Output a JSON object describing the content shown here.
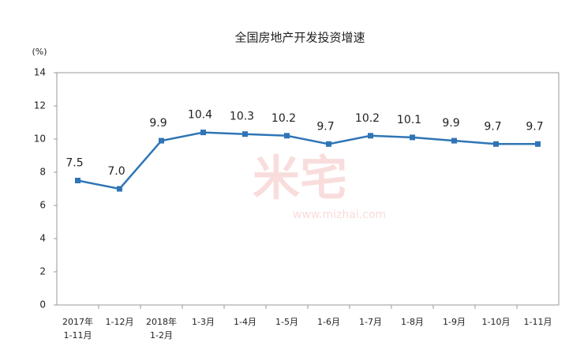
{
  "chart_data": {
    "type": "line",
    "title": "全国房地产开发投资增速",
    "y_unit": "(%)",
    "categories": [
      "2017年\n1-11月",
      "1-12月",
      "2018年\n1-2月",
      "1-3月",
      "1-4月",
      "1-5月",
      "1-6月",
      "1-7月",
      "1-8月",
      "1-9月",
      "1-10月",
      "1-11月"
    ],
    "series": [
      {
        "name": "全国房地产开发投资增速",
        "color": "#2f75b5",
        "values": [
          7.5,
          7.0,
          9.9,
          10.4,
          10.3,
          10.2,
          9.7,
          10.2,
          10.1,
          9.9,
          9.7,
          9.7
        ],
        "value_labels": [
          "7.5",
          "7.0",
          "9.9",
          "10.4",
          "10.3",
          "10.2",
          "9.7",
          "10.2",
          "10.1",
          "9.9",
          "9.7",
          "9.7"
        ]
      }
    ],
    "ylim": [
      0,
      14
    ],
    "yticks": [
      0,
      2,
      4,
      6,
      8,
      10,
      12,
      14
    ],
    "grid": false,
    "watermark": {
      "brand": "米宅",
      "url": "www.mizhai.com"
    }
  }
}
